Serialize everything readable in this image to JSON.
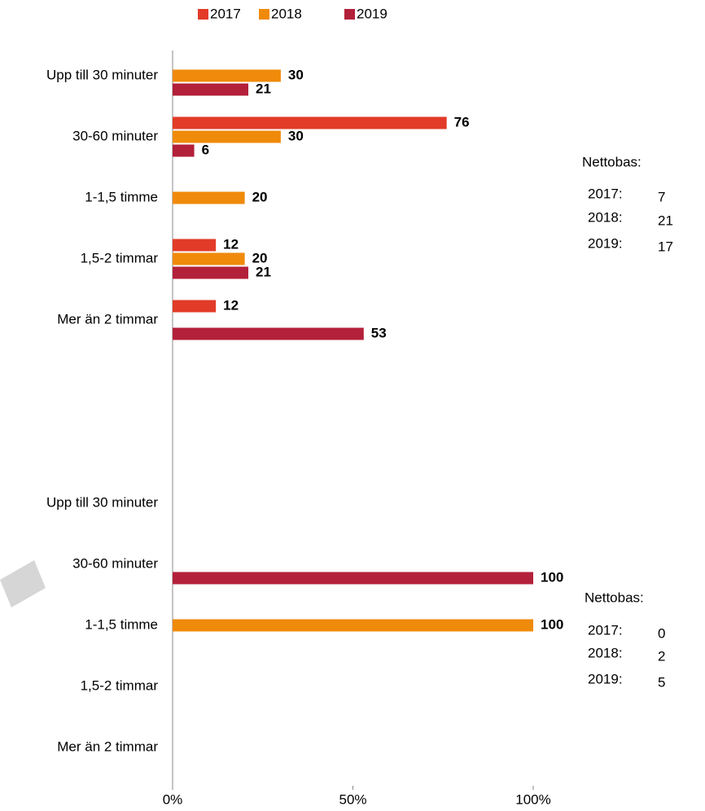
{
  "chart_data": {
    "type": "bar",
    "orientation": "horizontal",
    "series": [
      {
        "name": "2017",
        "color": "#e23b28"
      },
      {
        "name": "2018",
        "color": "#f08a0a"
      },
      {
        "name": "2019",
        "color": "#b3203a"
      }
    ],
    "xlim": [
      0,
      100
    ],
    "xticks": [
      {
        "value": 0,
        "label": "0%"
      },
      {
        "value": 50,
        "label": "50%"
      },
      {
        "value": 100,
        "label": "100%"
      }
    ],
    "panels": [
      {
        "categories": [
          "Upp till 30 minuter",
          "30-60 minuter",
          "1-1,5 timme",
          "1,5-2 timmar",
          "Mer än 2 timmar"
        ],
        "values": [
          [
            null,
            76,
            null,
            12,
            12
          ],
          [
            30,
            30,
            20,
            20,
            null
          ],
          [
            21,
            6,
            null,
            21,
            53
          ]
        ],
        "note": {
          "title": "Nettobas:",
          "rows": [
            {
              "label": "2017:",
              "value": 7
            },
            {
              "label": "2018:",
              "value": 21
            },
            {
              "label": "2019:",
              "value": 17
            }
          ]
        }
      },
      {
        "categories": [
          "Upp till 30 minuter",
          "30-60 minuter",
          "1-1,5 timme",
          "1,5-2 timmar",
          "Mer än 2 timmar"
        ],
        "values": [
          [
            null,
            null,
            null,
            null,
            null
          ],
          [
            null,
            null,
            100,
            null,
            null
          ],
          [
            null,
            100,
            null,
            null,
            null
          ]
        ],
        "note": {
          "title": "Nettobas:",
          "rows": [
            {
              "label": "2017:",
              "value": 0
            },
            {
              "label": "2018:",
              "value": 2
            },
            {
              "label": "2019:",
              "value": 5
            }
          ]
        }
      }
    ]
  }
}
